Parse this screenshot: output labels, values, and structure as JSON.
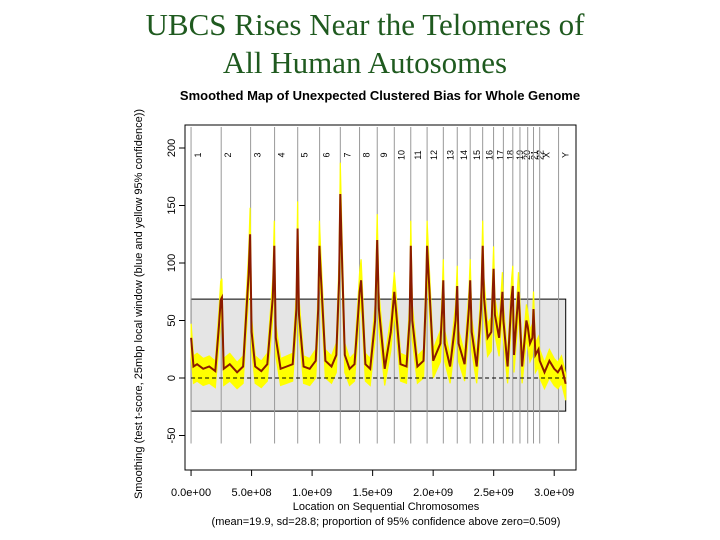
{
  "slide": {
    "title_line1": "UBCS Rises Near the Telomeres of",
    "title_line2": "All Human Autosomes"
  },
  "chart_data": {
    "type": "line",
    "title": "Smoothed Map of Unexpected Clustered Bias for Whole Genome",
    "xlabel": "Location on Sequential Chromosomes",
    "xlabel_note": "(mean=19.9, sd=28.8; proportion of 95% confidence above zero=0.509)",
    "ylabel": "Smoothing (test t-score, 25mbp local window (blue and yellow 95% confidence))",
    "xlim": [
      -50000000,
      3180000000
    ],
    "ylim": [
      -80,
      220
    ],
    "x_ticks": [
      0,
      500000000,
      1000000000,
      1500000000,
      2000000000,
      2500000000,
      3000000000
    ],
    "x_tick_labels": [
      "0.0e+00",
      "5.0e+08",
      "1.0e+09",
      "1.5e+09",
      "2.0e+09",
      "2.5e+09",
      "3.0e+09"
    ],
    "y_ticks": [
      -50,
      0,
      50,
      100,
      150,
      200
    ],
    "y_tick_labels": [
      "-50",
      "0",
      "50",
      "100",
      "150",
      "200"
    ],
    "reference_band": [
      -28.8,
      68.6
    ],
    "reference_line": 0,
    "chromosome_labels": [
      "1",
      "2",
      "3",
      "4",
      "5",
      "6",
      "7",
      "8",
      "9",
      "10",
      "11",
      "12",
      "13",
      "14",
      "15",
      "16",
      "17",
      "18",
      "19",
      "20",
      "21",
      "22",
      "X",
      "Y"
    ],
    "chromosome_starts": [
      0,
      249000000,
      492000000,
      690000000,
      881000000,
      1062000000,
      1233000000,
      1392000000,
      1538000000,
      1679000000,
      1815000000,
      1950000000,
      2084000000,
      2199000000,
      2306000000,
      2409000000,
      2499000000,
      2580000000,
      2658000000,
      2717000000,
      2781000000,
      2829000000,
      2880000000,
      3036000000
    ],
    "genome_end": 3095000000,
    "series_points": [
      [
        0,
        35
      ],
      [
        20000000,
        10
      ],
      [
        50000000,
        12
      ],
      [
        100000000,
        8
      ],
      [
        150000000,
        10
      ],
      [
        200000000,
        6
      ],
      [
        230000000,
        45
      ],
      [
        245000000,
        68
      ],
      [
        255000000,
        70
      ],
      [
        270000000,
        8
      ],
      [
        320000000,
        12
      ],
      [
        380000000,
        5
      ],
      [
        430000000,
        10
      ],
      [
        475000000,
        90
      ],
      [
        488000000,
        125
      ],
      [
        500000000,
        40
      ],
      [
        530000000,
        10
      ],
      [
        580000000,
        6
      ],
      [
        630000000,
        12
      ],
      [
        675000000,
        70
      ],
      [
        688000000,
        115
      ],
      [
        700000000,
        35
      ],
      [
        740000000,
        8
      ],
      [
        790000000,
        10
      ],
      [
        840000000,
        12
      ],
      [
        870000000,
        60
      ],
      [
        880000000,
        130
      ],
      [
        892000000,
        55
      ],
      [
        930000000,
        10
      ],
      [
        980000000,
        8
      ],
      [
        1030000000,
        15
      ],
      [
        1050000000,
        60
      ],
      [
        1060000000,
        115
      ],
      [
        1072000000,
        90
      ],
      [
        1110000000,
        15
      ],
      [
        1160000000,
        10
      ],
      [
        1200000000,
        20
      ],
      [
        1223000000,
        85
      ],
      [
        1233000000,
        160
      ],
      [
        1245000000,
        110
      ],
      [
        1270000000,
        20
      ],
      [
        1310000000,
        8
      ],
      [
        1350000000,
        12
      ],
      [
        1380000000,
        55
      ],
      [
        1392000000,
        75
      ],
      [
        1405000000,
        85
      ],
      [
        1440000000,
        12
      ],
      [
        1480000000,
        8
      ],
      [
        1520000000,
        50
      ],
      [
        1538000000,
        120
      ],
      [
        1552000000,
        60
      ],
      [
        1600000000,
        8
      ],
      [
        1650000000,
        40
      ],
      [
        1679000000,
        75
      ],
      [
        1692000000,
        60
      ],
      [
        1730000000,
        12
      ],
      [
        1780000000,
        10
      ],
      [
        1805000000,
        50
      ],
      [
        1815000000,
        115
      ],
      [
        1828000000,
        50
      ],
      [
        1870000000,
        10
      ],
      [
        1920000000,
        15
      ],
      [
        1940000000,
        70
      ],
      [
        1950000000,
        115
      ],
      [
        1962000000,
        90
      ],
      [
        2000000000,
        15
      ],
      [
        2060000000,
        30
      ],
      [
        2075000000,
        60
      ],
      [
        2084000000,
        85
      ],
      [
        2095000000,
        30
      ],
      [
        2140000000,
        10
      ],
      [
        2185000000,
        50
      ],
      [
        2199000000,
        80
      ],
      [
        2210000000,
        30
      ],
      [
        2260000000,
        12
      ],
      [
        2295000000,
        60
      ],
      [
        2306000000,
        85
      ],
      [
        2318000000,
        40
      ],
      [
        2360000000,
        10
      ],
      [
        2395000000,
        60
      ],
      [
        2409000000,
        115
      ],
      [
        2420000000,
        70
      ],
      [
        2450000000,
        35
      ],
      [
        2480000000,
        40
      ],
      [
        2490000000,
        70
      ],
      [
        2499000000,
        95
      ],
      [
        2510000000,
        55
      ],
      [
        2545000000,
        35
      ],
      [
        2572000000,
        75
      ],
      [
        2580000000,
        50
      ],
      [
        2615000000,
        10
      ],
      [
        2648000000,
        70
      ],
      [
        2658000000,
        80
      ],
      [
        2668000000,
        20
      ],
      [
        2705000000,
        75
      ],
      [
        2717000000,
        50
      ],
      [
        2735000000,
        10
      ],
      [
        2770000000,
        50
      ],
      [
        2781000000,
        45
      ],
      [
        2800000000,
        30
      ],
      [
        2820000000,
        35
      ],
      [
        2829000000,
        60
      ],
      [
        2845000000,
        20
      ],
      [
        2870000000,
        25
      ],
      [
        2880000000,
        15
      ],
      [
        2920000000,
        5
      ],
      [
        2960000000,
        15
      ],
      [
        3000000000,
        8
      ],
      [
        3030000000,
        5
      ],
      [
        3060000000,
        10
      ],
      [
        3095000000,
        -5
      ]
    ],
    "colors": {
      "series": "#8b1a00",
      "confidence": "#ffff00",
      "band_fill": "#e5e5e5",
      "chromosome_line": "#999999",
      "title": "#1f5a1f"
    }
  }
}
